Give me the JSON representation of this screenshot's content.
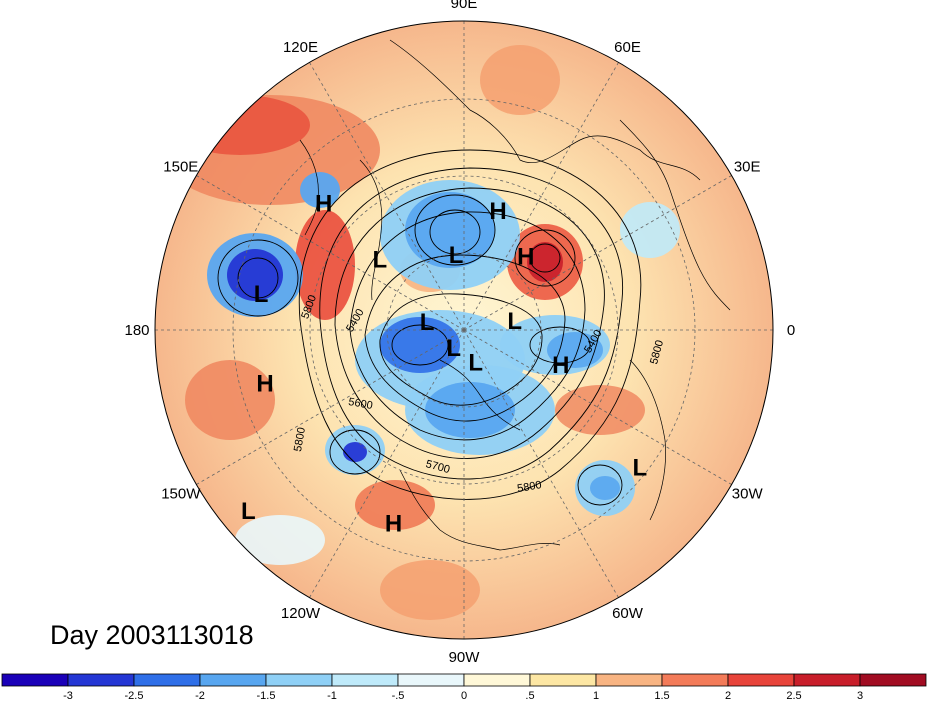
{
  "title": "Day 2003113018",
  "meridian_labels": [
    {
      "text": "90E",
      "lon": 90
    },
    {
      "text": "60E",
      "lon": 60
    },
    {
      "text": "30E",
      "lon": 30
    },
    {
      "text": "0",
      "lon": 0
    },
    {
      "text": "30W",
      "lon": -30
    },
    {
      "text": "60W",
      "lon": -60
    },
    {
      "text": "90W",
      "lon": -90
    },
    {
      "text": "120W",
      "lon": -120
    },
    {
      "text": "150W",
      "lon": -150
    },
    {
      "text": "180",
      "lon": 180
    },
    {
      "text": "150E",
      "lon": 150
    },
    {
      "text": "120E",
      "lon": 120
    }
  ],
  "pressure_centers": [
    {
      "type": "H",
      "lon": 74,
      "lat": 54
    },
    {
      "type": "H",
      "lon": 138,
      "lat": 35
    },
    {
      "type": "L",
      "lon": 96,
      "lat": 68
    },
    {
      "type": "L",
      "lon": 170,
      "lat": 30
    },
    {
      "type": "L",
      "lon": 140,
      "lat": 58
    },
    {
      "type": "H",
      "lon": 50,
      "lat": 62
    },
    {
      "type": "L",
      "lon": 168,
      "lat": 79
    },
    {
      "type": "L",
      "lon": 10,
      "lat": 75
    },
    {
      "type": "L",
      "lon": -120,
      "lat": 84
    },
    {
      "type": "L",
      "lon": -70,
      "lat": 80
    },
    {
      "type": "H",
      "lon": -20,
      "lat": 60
    },
    {
      "type": "H",
      "lon": -165,
      "lat": 30
    },
    {
      "type": "H",
      "lon": -110,
      "lat": 30
    },
    {
      "type": "L",
      "lon": -38,
      "lat": 25
    },
    {
      "type": "L",
      "lon": -140,
      "lat": 8
    }
  ],
  "contour_labels": [
    "5800",
    "5400",
    "5600",
    "5800",
    "5700",
    "5800",
    "5400",
    "5800"
  ],
  "colorbar": {
    "ticks": [
      "-3",
      "-2.5",
      "-2",
      "-1.5",
      "-1",
      "-.5",
      "0",
      ".5",
      "1",
      "1.5",
      "2",
      "2.5",
      "3"
    ],
    "colors": [
      "#1a00b8",
      "#2436d4",
      "#2f6fe8",
      "#58a6f0",
      "#8fd0f6",
      "#bfeafa",
      "#e9f7fb",
      "#fff8d8",
      "#fde7a4",
      "#f8b482",
      "#f37b59",
      "#e8443a",
      "#c81e2a",
      "#a10c22"
    ]
  }
}
